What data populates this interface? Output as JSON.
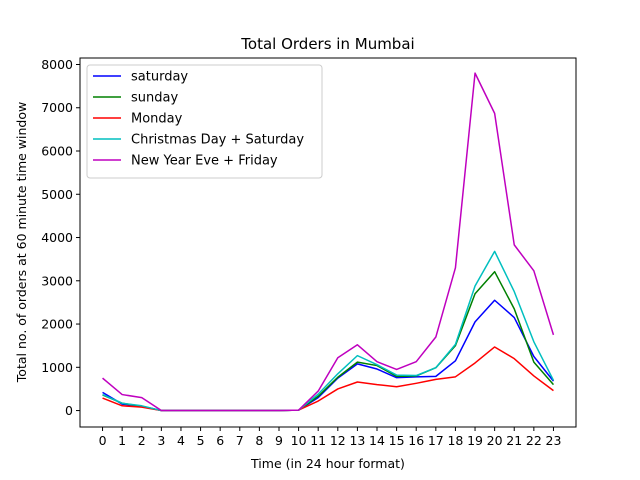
{
  "chart_data": {
    "type": "line",
    "title": "Total Orders in Mumbai",
    "xlabel": "Time (in 24 hour format)",
    "ylabel": "Total no. of orders at 60 minute time window",
    "x": [
      0,
      1,
      2,
      3,
      4,
      5,
      6,
      7,
      8,
      9,
      10,
      11,
      12,
      13,
      14,
      15,
      16,
      17,
      18,
      19,
      20,
      21,
      22,
      23
    ],
    "xlim": [
      -1.15,
      24.15
    ],
    "ylim": [
      -380,
      8150
    ],
    "yticks": [
      0,
      1000,
      2000,
      3000,
      4000,
      5000,
      6000,
      7000,
      8000
    ],
    "grid": false,
    "legend_position": "top-left",
    "series": [
      {
        "name": "saturday",
        "color": "#0000ff",
        "values": [
          420,
          150,
          100,
          0,
          0,
          0,
          0,
          0,
          0,
          0,
          10,
          300,
          750,
          1080,
          960,
          760,
          780,
          790,
          1150,
          2050,
          2550,
          2150,
          1250,
          680
        ]
      },
      {
        "name": "sunday",
        "color": "#008000",
        "values": [
          360,
          170,
          100,
          0,
          0,
          0,
          0,
          0,
          0,
          0,
          10,
          330,
          770,
          1120,
          1040,
          790,
          800,
          990,
          1500,
          2700,
          3210,
          2350,
          1120,
          600
        ]
      },
      {
        "name": "Monday",
        "color": "#ff0000",
        "values": [
          290,
          110,
          80,
          0,
          0,
          0,
          0,
          0,
          0,
          0,
          10,
          220,
          500,
          660,
          600,
          550,
          630,
          720,
          780,
          1100,
          1470,
          1200,
          800,
          460
        ]
      },
      {
        "name": "Christmas Day + Saturday",
        "color": "#00bfbf",
        "values": [
          370,
          170,
          110,
          0,
          0,
          0,
          0,
          0,
          0,
          0,
          10,
          380,
          850,
          1270,
          1060,
          820,
          810,
          990,
          1530,
          2880,
          3680,
          2750,
          1590,
          700
        ]
      },
      {
        "name": "New Year Eve + Friday",
        "color": "#bf00bf",
        "values": [
          750,
          370,
          300,
          0,
          0,
          0,
          0,
          0,
          0,
          0,
          10,
          450,
          1220,
          1520,
          1130,
          950,
          1130,
          1700,
          3300,
          7800,
          6870,
          3830,
          3230,
          1750
        ]
      }
    ]
  }
}
